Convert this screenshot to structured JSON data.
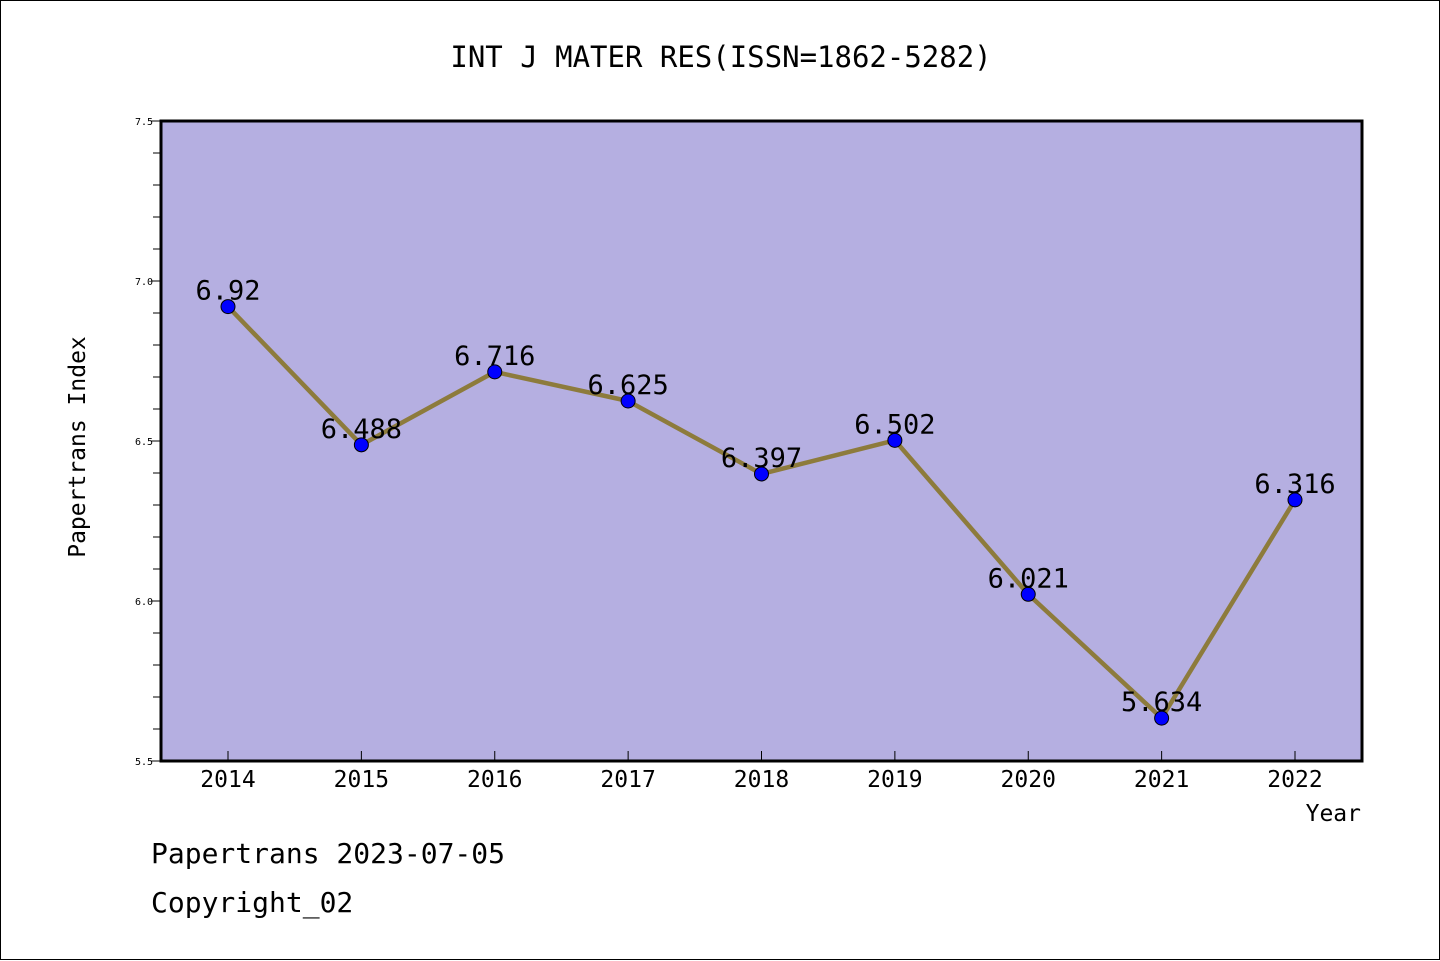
{
  "chart_data": {
    "type": "line",
    "title": "INT J MATER RES(ISSN=1862-5282)",
    "xlabel": "Year",
    "ylabel": "Papertrans Index",
    "categories": [
      "2014",
      "2015",
      "2016",
      "2017",
      "2018",
      "2019",
      "2020",
      "2021",
      "2022"
    ],
    "values": [
      6.92,
      6.488,
      6.716,
      6.625,
      6.397,
      6.502,
      6.021,
      5.634,
      6.316
    ],
    "value_labels": [
      "6.92",
      "6.488",
      "6.716",
      "6.625",
      "6.397",
      "6.502",
      "6.021",
      "5.634",
      "6.316"
    ],
    "ylim": [
      5.5,
      7.5
    ],
    "yticks": [
      "5.5",
      "6.0",
      "6.5",
      "7.0",
      "7.5"
    ],
    "grid": false,
    "legend": "none",
    "colors": {
      "plot_background": "#b5afe1",
      "line": "#8d7b3c",
      "marker": "#0000ff"
    }
  },
  "footer": {
    "line1": "Papertrans 2023-07-05",
    "line2": "Copyright_02"
  }
}
